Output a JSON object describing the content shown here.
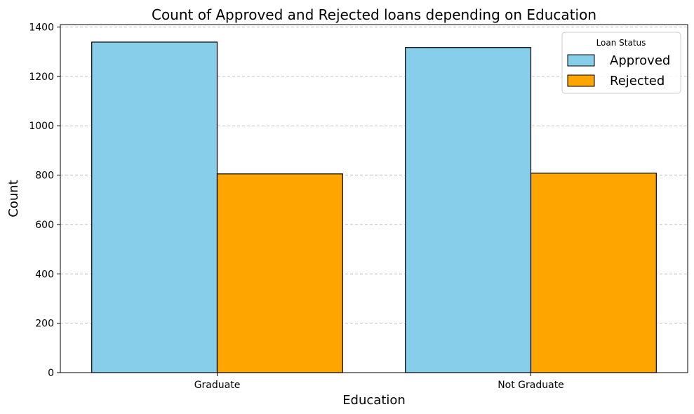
{
  "chart_data": {
    "type": "bar",
    "title": "Count of Approved and Rejected loans depending on Education",
    "xlabel": "Education",
    "ylabel": "Count",
    "categories": [
      "Graduate",
      "Not Graduate"
    ],
    "series": [
      {
        "name": "Approved",
        "values": [
          1339,
          1317
        ],
        "color": "#87CEEB"
      },
      {
        "name": "Rejected",
        "values": [
          805,
          808
        ],
        "color": "#FFA500"
      }
    ],
    "ylim": [
      0,
      1410
    ],
    "yticks": [
      0,
      200,
      400,
      600,
      800,
      1000,
      1200,
      1400
    ],
    "grid": "y-dashed",
    "legend": {
      "title": "Loan Status",
      "placement": "top-right"
    }
  }
}
